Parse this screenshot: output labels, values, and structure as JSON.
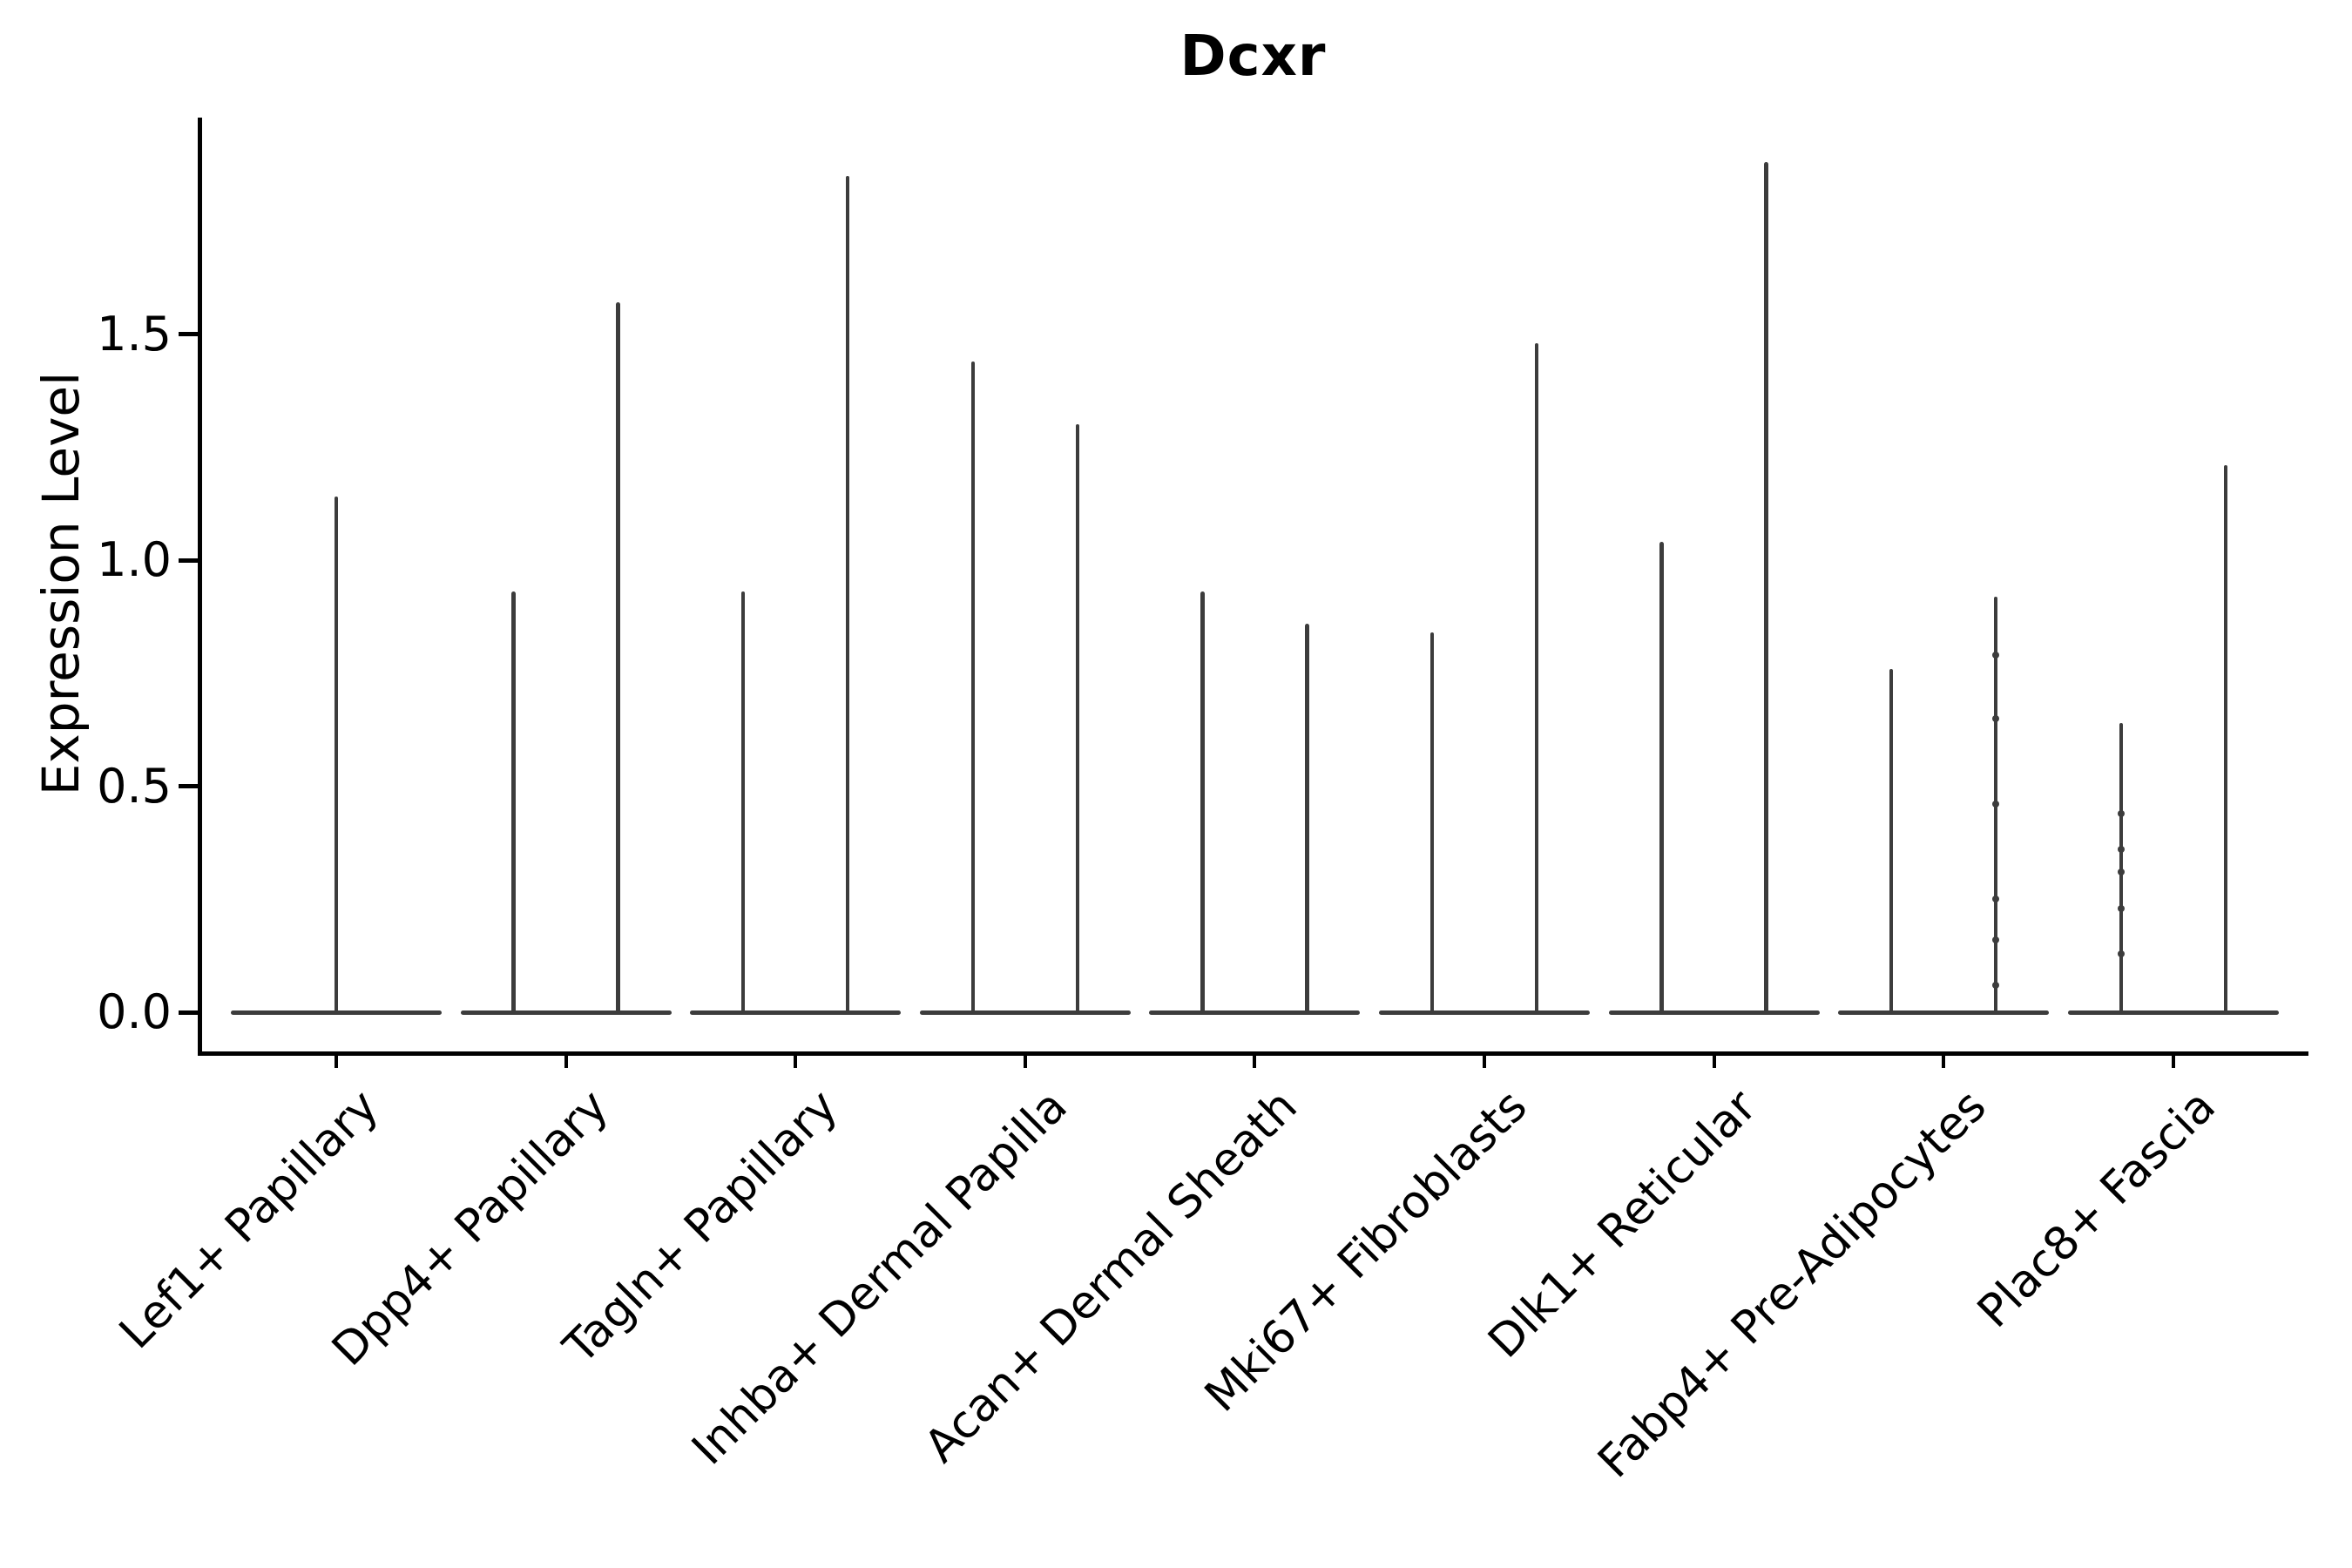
{
  "chart_data": {
    "type": "violin",
    "title": "Dcxr",
    "ylabel": "Expression Level",
    "xlabel": "",
    "y_ticks": [
      0.0,
      0.5,
      1.0,
      1.5
    ],
    "y_tick_labels": [
      "0.0",
      "0.5",
      "1.0",
      "1.5"
    ],
    "ylim": [
      -0.09,
      1.98
    ],
    "grid": false,
    "legend": "none",
    "x_tick_rotation": 45,
    "categories": [
      "Lef1+ Papillary",
      "Dpp4+ Papillary",
      "Tagln+ Papillary",
      "Inhba+ Dermal Papilla",
      "Acan+ Dermal Sheath",
      "Mki67+ Fibroblasts",
      "Dlk1+ Reticular",
      "Fabp4+ Pre-Adipocytes",
      "Plac8+ Fascia"
    ],
    "violins": [
      {
        "category": "Lef1+ Papillary",
        "spikes": [
          {
            "max": 1.14,
            "points": []
          }
        ]
      },
      {
        "category": "Dpp4+ Papillary",
        "spikes": [
          {
            "max": 0.93,
            "points": []
          },
          {
            "max": 1.57,
            "points": []
          }
        ]
      },
      {
        "category": "Tagln+ Papillary",
        "spikes": [
          {
            "max": 0.93,
            "points": []
          },
          {
            "max": 1.85,
            "points": []
          }
        ]
      },
      {
        "category": "Inhba+ Dermal Papilla",
        "spikes": [
          {
            "max": 1.44,
            "points": []
          },
          {
            "max": 1.3,
            "points": []
          }
        ]
      },
      {
        "category": "Acan+ Dermal Sheath",
        "spikes": [
          {
            "max": 0.93,
            "points": []
          },
          {
            "max": 0.86,
            "points": []
          }
        ]
      },
      {
        "category": "Mki67+ Fibroblasts",
        "spikes": [
          {
            "max": 0.84,
            "points": []
          },
          {
            "max": 1.48,
            "points": []
          }
        ]
      },
      {
        "category": "Dlk1+ Reticular",
        "spikes": [
          {
            "max": 1.04,
            "points": []
          },
          {
            "max": 1.88,
            "points": []
          }
        ]
      },
      {
        "category": "Fabp4+ Pre-Adipocytes",
        "spikes": [
          {
            "max": 0.76,
            "points": []
          },
          {
            "max": 0.92,
            "points": [
              0.79,
              0.65,
              0.46,
              0.25,
              0.16,
              0.06
            ]
          }
        ]
      },
      {
        "category": "Plac8+ Fascia",
        "spikes": [
          {
            "max": 0.64,
            "points": [
              0.44,
              0.36,
              0.31,
              0.23,
              0.13
            ]
          },
          {
            "max": 1.21,
            "points": []
          }
        ]
      }
    ],
    "colors": {
      "violin": "#3c3c3c",
      "axis": "#000000",
      "text": "#000000",
      "background": "#ffffff"
    }
  }
}
